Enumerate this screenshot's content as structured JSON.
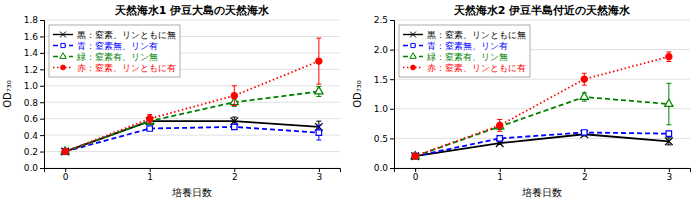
{
  "chart_data": [
    {
      "type": "line",
      "title": "天然海水1  伊豆大島の天然海水",
      "x_label": "培養日数",
      "y_label": "OD₇₃₀",
      "x": [
        0,
        1,
        2,
        3
      ],
      "xlim": [
        -0.25,
        3.25
      ],
      "xticks": [
        0,
        1,
        2,
        3
      ],
      "ylim": [
        0.0,
        1.8
      ],
      "yticks": [
        {
          "value": 0.0,
          "label": "0.0"
        },
        0.2,
        0.4,
        0.6,
        0.8,
        {
          "value": 1.0,
          "label": "1.0"
        },
        1.2,
        1.4,
        1.6,
        1.8
      ],
      "grid": true,
      "legend": "upper left",
      "series": [
        {
          "name": "黒：窒素、リンともに無",
          "color": "#000000",
          "marker": "x",
          "line_style": "solid",
          "values": [
            0.2,
            0.57,
            0.57,
            0.5
          ],
          "yerr": [
            0.01,
            0.03,
            0.05,
            0.07
          ]
        },
        {
          "name": "青：窒素無、リン有",
          "color": "#0000ff",
          "marker": "square",
          "line_style": "dashed",
          "values": [
            0.2,
            0.48,
            0.5,
            0.43
          ],
          "yerr": [
            0.01,
            0.02,
            0.03,
            0.09
          ]
        },
        {
          "name": "緑：窒素有、リン無",
          "color": "#008000",
          "marker": "triangle",
          "line_style": "dashed",
          "values": [
            0.2,
            0.57,
            0.8,
            0.93
          ],
          "yerr": [
            0.01,
            0.04,
            0.05,
            0.06
          ]
        },
        {
          "name": "赤：窒素、リンともに有",
          "color": "#ff0000",
          "marker": "circle",
          "line_style": "dotted",
          "values": [
            0.2,
            0.6,
            0.88,
            1.3
          ],
          "yerr": [
            0.01,
            0.05,
            0.12,
            0.28
          ]
        }
      ]
    },
    {
      "type": "line",
      "title": "天然海水2  伊豆半島付近の天然海水",
      "x_label": "培養日数",
      "y_label": "OD₇₃₀",
      "x": [
        0,
        1,
        2,
        3
      ],
      "xlim": [
        -0.25,
        3.25
      ],
      "xticks": [
        0,
        1,
        2,
        3
      ],
      "ylim": [
        0.0,
        2.5
      ],
      "yticks": [
        {
          "value": 0.0,
          "label": "0.0"
        },
        0.5,
        {
          "value": 1.0,
          "label": "1.0"
        },
        1.5,
        {
          "value": 2.0,
          "label": "2.0"
        },
        2.5
      ],
      "grid": true,
      "legend": "upper left",
      "series": [
        {
          "name": "黒：窒素、リンともに無",
          "color": "#000000",
          "marker": "x",
          "line_style": "solid",
          "values": [
            0.2,
            0.42,
            0.57,
            0.45
          ],
          "yerr": [
            0.01,
            0.02,
            0.03,
            0.06
          ]
        },
        {
          "name": "青：窒素無、リン有",
          "color": "#0000ff",
          "marker": "square",
          "line_style": "dashed",
          "values": [
            0.2,
            0.5,
            0.6,
            0.58
          ],
          "yerr": [
            0.01,
            0.03,
            0.03,
            0.04
          ]
        },
        {
          "name": "緑：窒素有、リン無",
          "color": "#008000",
          "marker": "triangle",
          "line_style": "dashed",
          "values": [
            0.2,
            0.7,
            1.2,
            1.08
          ],
          "yerr": [
            0.01,
            0.05,
            0.07,
            0.35
          ]
        },
        {
          "name": "赤：窒素、リンともに有",
          "color": "#ff0000",
          "marker": "circle",
          "line_style": "dotted",
          "values": [
            0.2,
            0.72,
            1.5,
            1.88
          ],
          "yerr": [
            0.01,
            0.1,
            0.1,
            0.08
          ]
        }
      ]
    }
  ]
}
